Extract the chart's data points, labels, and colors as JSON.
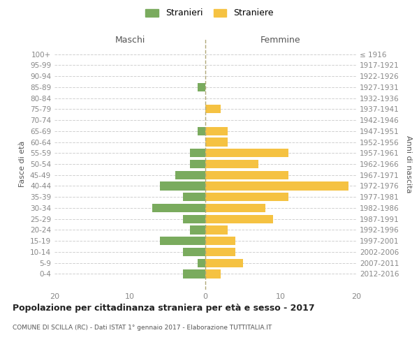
{
  "age_groups": [
    "100+",
    "95-99",
    "90-94",
    "85-89",
    "80-84",
    "75-79",
    "70-74",
    "65-69",
    "60-64",
    "55-59",
    "50-54",
    "45-49",
    "40-44",
    "35-39",
    "30-34",
    "25-29",
    "20-24",
    "15-19",
    "10-14",
    "5-9",
    "0-4"
  ],
  "birth_years": [
    "≤ 1916",
    "1917-1921",
    "1922-1926",
    "1927-1931",
    "1932-1936",
    "1937-1941",
    "1942-1946",
    "1947-1951",
    "1952-1956",
    "1957-1961",
    "1962-1966",
    "1967-1971",
    "1972-1976",
    "1977-1981",
    "1982-1986",
    "1987-1991",
    "1992-1996",
    "1997-2001",
    "2002-2006",
    "2007-2011",
    "2012-2016"
  ],
  "maschi": [
    0,
    0,
    0,
    1,
    0,
    0,
    0,
    1,
    0,
    2,
    2,
    4,
    6,
    3,
    7,
    3,
    2,
    6,
    3,
    1,
    3
  ],
  "femmine": [
    0,
    0,
    0,
    0,
    0,
    2,
    0,
    3,
    3,
    11,
    7,
    11,
    19,
    11,
    8,
    9,
    3,
    4,
    4,
    5,
    2
  ],
  "color_maschi": "#7aab5e",
  "color_femmine": "#f5c242",
  "title": "Popolazione per cittadinanza straniera per età e sesso - 2017",
  "subtitle": "COMUNE DI SCILLA (RC) - Dati ISTAT 1° gennaio 2017 - Elaborazione TUTTITALIA.IT",
  "xlabel_left": "Maschi",
  "xlabel_right": "Femmine",
  "ylabel_left": "Fasce di età",
  "ylabel_right": "Anni di nascita",
  "xlim": 20,
  "legend_stranieri": "Stranieri",
  "legend_straniere": "Straniere",
  "background_color": "#ffffff",
  "grid_color": "#d0d0d0",
  "axis_label_color": "#555555",
  "tick_color": "#888888"
}
